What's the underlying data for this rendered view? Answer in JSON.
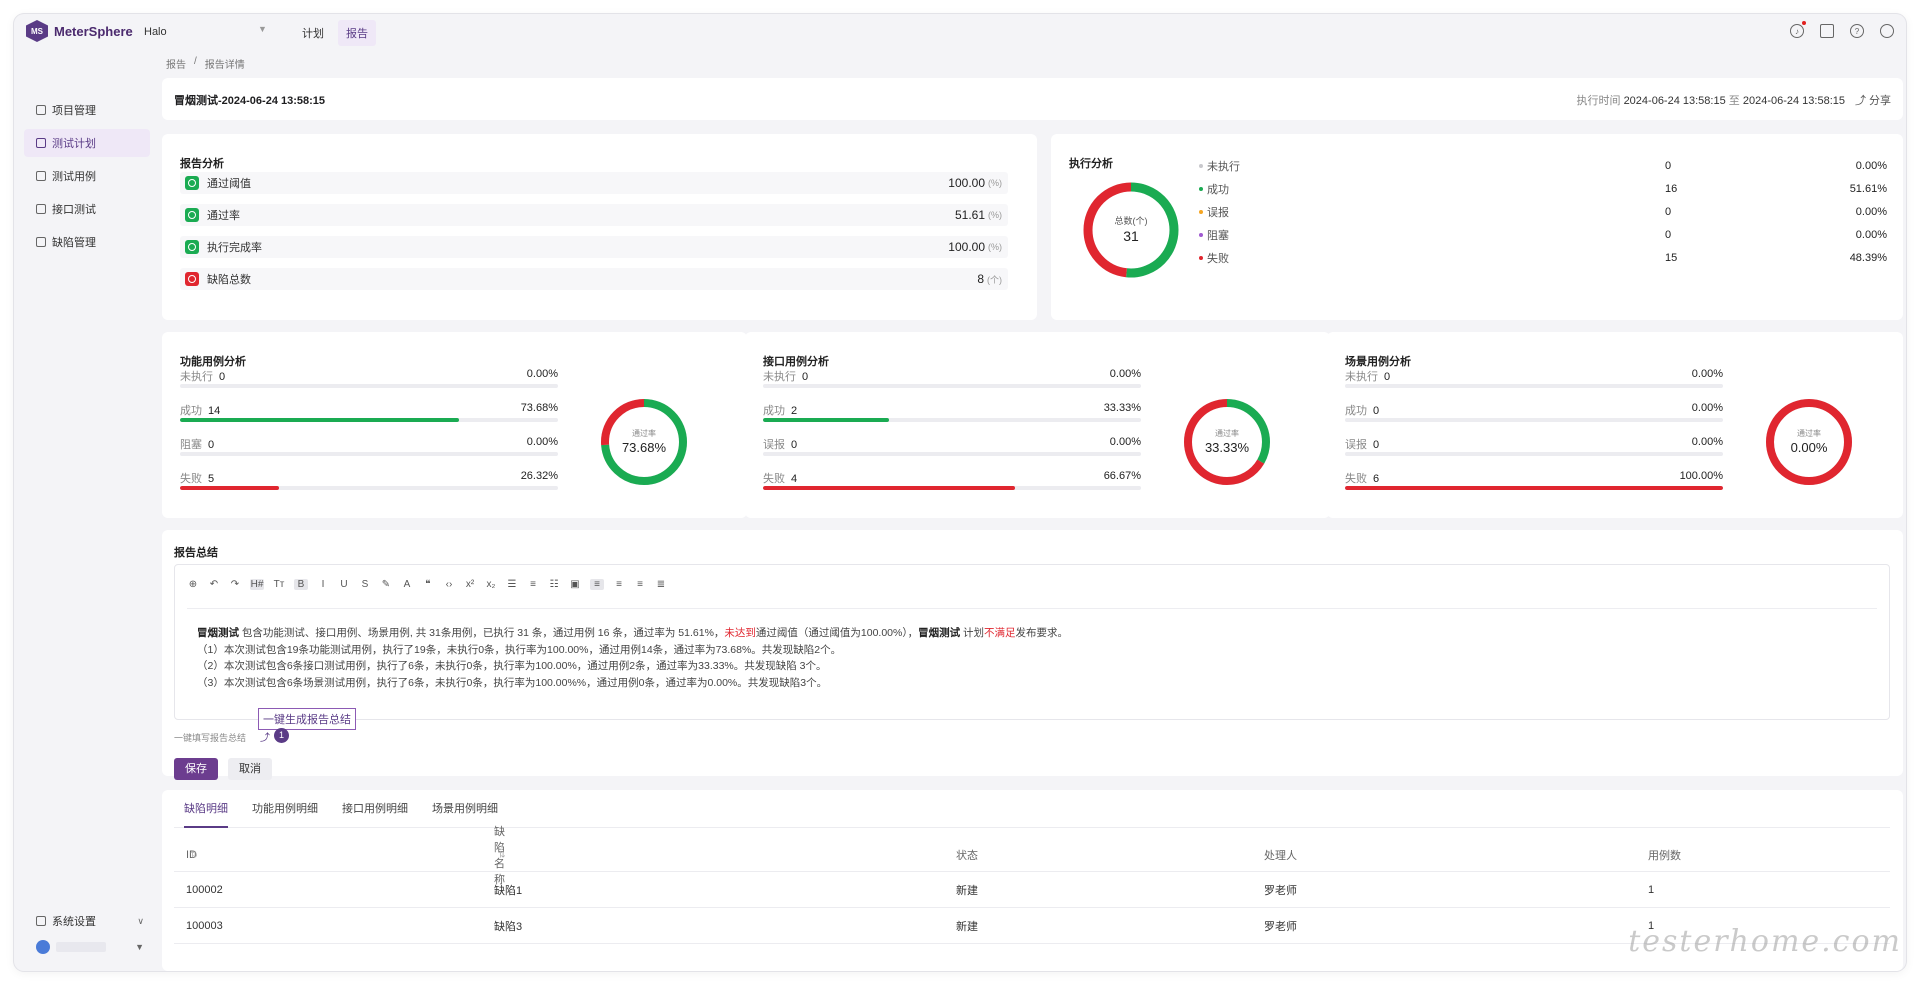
{
  "app": {
    "name": "MeterSphere",
    "project": "Halo"
  },
  "topnav": [
    {
      "label": "计划",
      "active": false
    },
    {
      "label": "报告",
      "active": true
    }
  ],
  "sidebar": {
    "items": [
      {
        "label": "项目管理",
        "active": false
      },
      {
        "label": "测试计划",
        "active": true
      },
      {
        "label": "测试用例",
        "active": false
      },
      {
        "label": "接口测试",
        "active": false
      },
      {
        "label": "缺陷管理",
        "active": false
      }
    ],
    "settings": "系统设置"
  },
  "breadcrumb": [
    "报告",
    "报告详情"
  ],
  "report": {
    "title": "冒烟测试-2024-06-24 13:58:15",
    "exec_time_label": "执行时间",
    "exec_start": "2024-06-24 13:58:15",
    "exec_to": "至",
    "exec_end": "2024-06-24 13:58:15",
    "share": "分享"
  },
  "analysis": {
    "title": "报告分析",
    "metrics": [
      {
        "label": "通过阈值",
        "value": "100.00",
        "unit": "(%)",
        "status": "success"
      },
      {
        "label": "通过率",
        "value": "51.61",
        "unit": "(%)",
        "status": "success"
      },
      {
        "label": "执行完成率",
        "value": "100.00",
        "unit": "(%)",
        "status": "success"
      },
      {
        "label": "缺陷总数",
        "value": "8",
        "unit": "(个)",
        "status": "danger"
      }
    ]
  },
  "execution": {
    "title": "执行分析",
    "total_label": "总数(个)",
    "total": "31",
    "legend": [
      {
        "label": "未执行",
        "count": "0",
        "pct": "0.00%",
        "color": "#c8c8cc"
      },
      {
        "label": "成功",
        "count": "16",
        "pct": "51.61%",
        "color": "#1aab52"
      },
      {
        "label": "误报",
        "count": "0",
        "pct": "0.00%",
        "color": "#f5a623"
      },
      {
        "label": "阻塞",
        "count": "0",
        "pct": "0.00%",
        "color": "#a05ad0"
      },
      {
        "label": "失败",
        "count": "15",
        "pct": "48.39%",
        "color": "#e0262f"
      }
    ]
  },
  "case_analysis": [
    {
      "title": "功能用例分析",
      "rate_label": "通过率",
      "rate": "73.68%",
      "rows": [
        {
          "label": "未执行",
          "count": "0",
          "pct": "0.00%",
          "fraction": 0,
          "color": "#c8c8cc"
        },
        {
          "label": "成功",
          "count": "14",
          "pct": "73.68%",
          "fraction": 0.7368,
          "color": "#1aab52"
        },
        {
          "label": "阻塞",
          "count": "0",
          "pct": "0.00%",
          "fraction": 0,
          "color": "#a05ad0"
        },
        {
          "label": "失败",
          "count": "5",
          "pct": "26.32%",
          "fraction": 0.2632,
          "color": "#e0262f"
        }
      ]
    },
    {
      "title": "接口用例分析",
      "rate_label": "通过率",
      "rate": "33.33%",
      "rows": [
        {
          "label": "未执行",
          "count": "0",
          "pct": "0.00%",
          "fraction": 0,
          "color": "#c8c8cc"
        },
        {
          "label": "成功",
          "count": "2",
          "pct": "33.33%",
          "fraction": 0.3333,
          "color": "#1aab52"
        },
        {
          "label": "误报",
          "count": "0",
          "pct": "0.00%",
          "fraction": 0,
          "color": "#f5a623"
        },
        {
          "label": "失败",
          "count": "4",
          "pct": "66.67%",
          "fraction": 0.6667,
          "color": "#e0262f"
        }
      ]
    },
    {
      "title": "场景用例分析",
      "rate_label": "通过率",
      "rate": "0.00%",
      "rows": [
        {
          "label": "未执行",
          "count": "0",
          "pct": "0.00%",
          "fraction": 0,
          "color": "#c8c8cc"
        },
        {
          "label": "成功",
          "count": "0",
          "pct": "0.00%",
          "fraction": 0,
          "color": "#1aab52"
        },
        {
          "label": "误报",
          "count": "0",
          "pct": "0.00%",
          "fraction": 0,
          "color": "#f5a623"
        },
        {
          "label": "失败",
          "count": "6",
          "pct": "100.00%",
          "fraction": 1,
          "color": "#e0262f"
        }
      ]
    }
  ],
  "summary": {
    "title": "报告总结",
    "line1_a": "冒烟测试",
    "line1_b": " 包含功能测试、接口用例、场景用例, 共 31条用例，已执行 31 条，通过用例 16 条，通过率为 51.61%，",
    "line1_c": "未达到",
    "line1_d": "通过阈值（通过阈值为100.00%），",
    "line1_e": "冒烟测试",
    "line1_f": " 计划",
    "line1_g": "不满足",
    "line1_h": "发布要求。",
    "line2": "（1）本次测试包含19条功能测试用例，执行了19条，未执行0条，执行率为100.00%，通过用例14条，通过率为73.68%。共发现缺陷2个。",
    "line3": "（2）本次测试包含6条接口测试用例，执行了6条，未执行0条，执行率为100.00%，通过用例2条，通过率为33.33%。共发现缺陷 3个。",
    "line4": "（3）本次测试包含6条场景测试用例，执行了6条，未执行0条，执行率为100.00%%，通过用例0条，通过率为0.00%。共发现缺陷3个。",
    "generate_button": "一键生成报告总结",
    "hint": "一键填写报告总结",
    "step": "1",
    "save": "保存",
    "cancel": "取消"
  },
  "details": {
    "tabs": [
      {
        "label": "缺陷明细",
        "active": true
      },
      {
        "label": "功能用例明细",
        "active": false
      },
      {
        "label": "接口用例明细",
        "active": false
      },
      {
        "label": "场景用例明细",
        "active": false
      }
    ],
    "columns": [
      "ID",
      "缺陷名称",
      "状态",
      "处理人",
      "用例数"
    ],
    "rows": [
      {
        "id": "100002",
        "name": "缺陷1",
        "status": "新建",
        "handler": "罗老师",
        "cases": "1"
      },
      {
        "id": "100003",
        "name": "缺陷3",
        "status": "新建",
        "handler": "罗老师",
        "cases": "1"
      }
    ]
  },
  "watermark": "testerhome.com"
}
